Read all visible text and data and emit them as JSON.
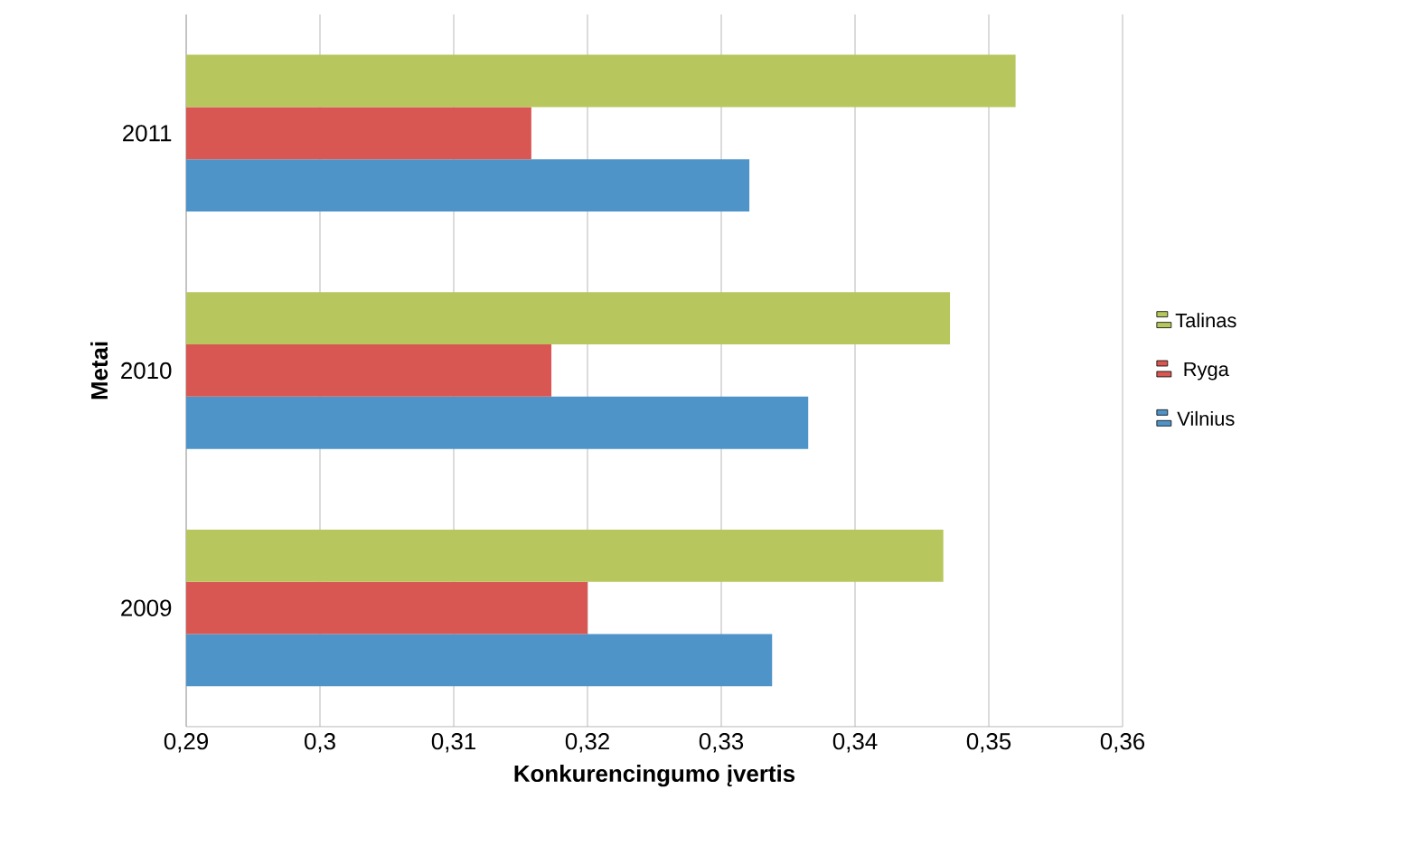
{
  "chart_data": {
    "type": "bar",
    "orientation": "horizontal",
    "xlabel": "Konkurencingumo įvertis",
    "ylabel": "Metai",
    "categories": [
      "2011",
      "2010",
      "2009"
    ],
    "series": [
      {
        "name": "Vilnius",
        "color": "#4f94c9",
        "values": [
          0.3321,
          0.3365,
          0.3338
        ]
      },
      {
        "name": "Ryga",
        "color": "#d85752",
        "values": [
          0.3158,
          0.3173,
          0.32
        ]
      },
      {
        "name": "Talinas",
        "color": "#b7c75d",
        "values": [
          0.352,
          0.3471,
          0.3466
        ]
      }
    ],
    "xlim": [
      0.29,
      0.36
    ],
    "xticks": [
      {
        "value": 0.29,
        "label": "0,29"
      },
      {
        "value": 0.3,
        "label": "0,3"
      },
      {
        "value": 0.31,
        "label": "0,31"
      },
      {
        "value": 0.32,
        "label": "0,32"
      },
      {
        "value": 0.33,
        "label": "0,33"
      },
      {
        "value": 0.34,
        "label": "0,34"
      },
      {
        "value": 0.35,
        "label": "0,35"
      },
      {
        "value": 0.36,
        "label": "0,36"
      }
    ],
    "grid": "x",
    "legend": "right"
  }
}
